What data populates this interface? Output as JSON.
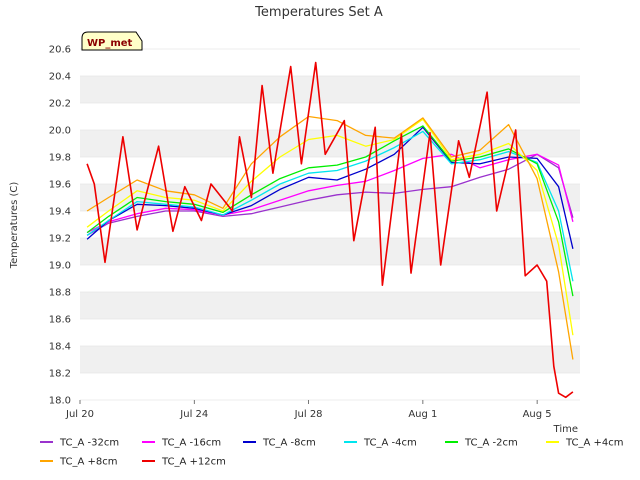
{
  "chart_data": {
    "type": "line",
    "title": "Temperatures Set A",
    "xlabel": "Time",
    "ylabel": "Temperatures (C)",
    "badge": "WP_met",
    "ylim": [
      18.0,
      20.6
    ],
    "yticks": [
      "18.0",
      "18.2",
      "18.4",
      "18.6",
      "18.8",
      "19.0",
      "19.2",
      "19.4",
      "19.6",
      "19.8",
      "20.0",
      "20.2",
      "20.4",
      "20.6"
    ],
    "xlim": [
      "2023-07-20",
      "2023-08-06 12:00"
    ],
    "xticks": [
      {
        "label": "Jul 20",
        "date": "2023-07-20"
      },
      {
        "label": "Jul 24",
        "date": "2023-07-24"
      },
      {
        "label": "Jul 28",
        "date": "2023-07-28"
      },
      {
        "label": "Aug 1",
        "date": "2023-08-01"
      },
      {
        "label": "Aug 5",
        "date": "2023-08-05"
      }
    ],
    "grid": "alternating horizontal bands",
    "legend_position": "bottom",
    "series": [
      {
        "name": "TC_A -32cm",
        "color": "#9a32cd",
        "x": [
          "2023-07-20 06:00",
          "2023-07-21",
          "2023-07-22",
          "2023-07-23",
          "2023-07-24",
          "2023-07-25",
          "2023-07-26",
          "2023-07-27",
          "2023-07-28",
          "2023-07-29",
          "2023-07-30",
          "2023-07-31",
          "2023-08-01",
          "2023-08-02",
          "2023-08-03",
          "2023-08-04",
          "2023-08-05",
          "2023-08-05 18:00",
          "2023-08-06 06:00"
        ],
        "y": [
          19.22,
          19.31,
          19.36,
          19.4,
          19.4,
          19.36,
          19.38,
          19.43,
          19.48,
          19.52,
          19.54,
          19.53,
          19.56,
          19.58,
          19.65,
          19.71,
          19.82,
          19.72,
          19.35
        ]
      },
      {
        "name": "TC_A -16cm",
        "color": "#ff00ff",
        "x": [
          "2023-07-20 06:00",
          "2023-07-21",
          "2023-07-22",
          "2023-07-23",
          "2023-07-24",
          "2023-07-25",
          "2023-07-26",
          "2023-07-27",
          "2023-07-28",
          "2023-07-29",
          "2023-07-30",
          "2023-07-31",
          "2023-08-01",
          "2023-08-02",
          "2023-08-03",
          "2023-08-04",
          "2023-08-05",
          "2023-08-05 18:00",
          "2023-08-06 06:00"
        ],
        "y": [
          19.24,
          19.32,
          19.38,
          19.42,
          19.41,
          19.37,
          19.41,
          19.48,
          19.55,
          19.59,
          19.62,
          19.7,
          19.79,
          19.82,
          19.72,
          19.78,
          19.82,
          19.74,
          19.32
        ]
      },
      {
        "name": "TC_A -8cm",
        "color": "#0000cd",
        "x": [
          "2023-07-20 06:00",
          "2023-07-21",
          "2023-07-22",
          "2023-07-23",
          "2023-07-24",
          "2023-07-25",
          "2023-07-26",
          "2023-07-27",
          "2023-07-28",
          "2023-07-29",
          "2023-07-30",
          "2023-07-31",
          "2023-08-01",
          "2023-08-02",
          "2023-08-03",
          "2023-08-04",
          "2023-08-05",
          "2023-08-05 18:00",
          "2023-08-06 06:00"
        ],
        "y": [
          19.19,
          19.33,
          19.45,
          19.44,
          19.42,
          19.37,
          19.44,
          19.56,
          19.65,
          19.63,
          19.71,
          19.82,
          20.02,
          19.76,
          19.75,
          19.8,
          19.79,
          19.58,
          19.12
        ]
      },
      {
        "name": "TC_A -4cm",
        "color": "#00e5ee",
        "x": [
          "2023-07-20 06:00",
          "2023-07-21",
          "2023-07-22",
          "2023-07-23",
          "2023-07-24",
          "2023-07-25",
          "2023-07-26",
          "2023-07-27",
          "2023-07-28",
          "2023-07-29",
          "2023-07-30",
          "2023-07-31",
          "2023-08-01",
          "2023-08-02",
          "2023-08-03",
          "2023-08-04",
          "2023-08-05",
          "2023-08-05 18:00",
          "2023-08-06 06:00"
        ],
        "y": [
          19.22,
          19.33,
          19.47,
          19.45,
          19.43,
          19.37,
          19.48,
          19.6,
          19.68,
          19.7,
          19.77,
          19.87,
          19.99,
          19.75,
          19.78,
          19.84,
          19.76,
          19.4,
          18.88
        ]
      },
      {
        "name": "TC_A -2cm",
        "color": "#00ee00",
        "x": [
          "2023-07-20 06:00",
          "2023-07-21",
          "2023-07-22",
          "2023-07-23",
          "2023-07-24",
          "2023-07-25",
          "2023-07-26",
          "2023-07-27",
          "2023-07-28",
          "2023-07-29",
          "2023-07-30",
          "2023-07-31",
          "2023-08-01",
          "2023-08-02",
          "2023-08-03",
          "2023-08-04",
          "2023-08-05",
          "2023-08-05 18:00",
          "2023-08-06 06:00"
        ],
        "y": [
          19.24,
          19.36,
          19.5,
          19.47,
          19.45,
          19.39,
          19.52,
          19.64,
          19.72,
          19.74,
          19.8,
          19.92,
          20.03,
          19.77,
          19.8,
          19.86,
          19.75,
          19.32,
          18.77
        ]
      },
      {
        "name": "TC_A +4cm",
        "color": "#ffff00",
        "x": [
          "2023-07-20 06:00",
          "2023-07-21",
          "2023-07-22",
          "2023-07-23",
          "2023-07-24",
          "2023-07-25",
          "2023-07-26",
          "2023-07-27",
          "2023-07-28",
          "2023-07-29",
          "2023-07-30",
          "2023-07-31",
          "2023-08-01",
          "2023-08-02",
          "2023-08-03",
          "2023-08-04",
          "2023-08-05",
          "2023-08-05 18:00",
          "2023-08-06 06:00"
        ],
        "y": [
          19.28,
          19.4,
          19.55,
          19.5,
          19.48,
          19.4,
          19.62,
          19.8,
          19.93,
          19.96,
          19.88,
          19.93,
          20.08,
          19.78,
          19.82,
          19.9,
          19.7,
          19.15,
          18.48
        ]
      },
      {
        "name": "TC_A +8cm",
        "color": "#ffa500",
        "x": [
          "2023-07-20 06:00",
          "2023-07-21",
          "2023-07-22",
          "2023-07-23",
          "2023-07-24",
          "2023-07-25",
          "2023-07-26",
          "2023-07-27",
          "2023-07-28",
          "2023-07-29",
          "2023-07-30",
          "2023-07-31",
          "2023-08-01",
          "2023-08-02",
          "2023-08-03",
          "2023-08-04",
          "2023-08-05",
          "2023-08-05 18:00",
          "2023-08-06 06:00"
        ],
        "y": [
          19.4,
          19.5,
          19.63,
          19.55,
          19.52,
          19.42,
          19.75,
          19.95,
          20.1,
          20.07,
          19.96,
          19.94,
          20.09,
          19.8,
          19.85,
          20.04,
          19.64,
          18.95,
          18.3
        ]
      },
      {
        "name": "TC_A +12cm",
        "color": "#ee0000",
        "x": [
          "2023-07-20 06:00",
          "2023-07-20 12:00",
          "2023-07-20 21:00",
          "2023-07-21 12:00",
          "2023-07-22 00:00",
          "2023-07-22 18:00",
          "2023-07-23 06:00",
          "2023-07-23 16:00",
          "2023-07-24 06:00",
          "2023-07-24 14:00",
          "2023-07-25 08:00",
          "2023-07-25 14:00",
          "2023-07-26 00:00",
          "2023-07-26 09:00",
          "2023-07-26 18:00",
          "2023-07-27 09:00",
          "2023-07-27 18:00",
          "2023-07-28 06:00",
          "2023-07-28 14:00",
          "2023-07-29 06:00",
          "2023-07-29 14:00",
          "2023-07-30 08:00",
          "2023-07-30 14:00",
          "2023-07-31 06:00",
          "2023-07-31 14:00",
          "2023-08-01 06:00",
          "2023-08-01 15:00",
          "2023-08-02 06:00",
          "2023-08-02 15:00",
          "2023-08-03 06:00",
          "2023-08-03 14:00",
          "2023-08-04 06:00",
          "2023-08-04 14:00",
          "2023-08-05 00:00",
          "2023-08-05 08:00",
          "2023-08-05 14:00",
          "2023-08-05 18:00",
          "2023-08-06 00:00",
          "2023-08-06 06:00"
        ],
        "y": [
          19.75,
          19.6,
          19.02,
          19.95,
          19.26,
          19.88,
          19.25,
          19.58,
          19.33,
          19.6,
          19.4,
          19.95,
          19.5,
          20.33,
          19.68,
          20.47,
          19.75,
          20.5,
          19.82,
          20.07,
          19.18,
          20.02,
          18.85,
          19.97,
          18.94,
          19.98,
          19.0,
          19.92,
          19.65,
          20.28,
          19.4,
          20.0,
          18.92,
          19.0,
          18.88,
          18.25,
          18.05,
          18.02,
          18.06
        ]
      }
    ]
  }
}
